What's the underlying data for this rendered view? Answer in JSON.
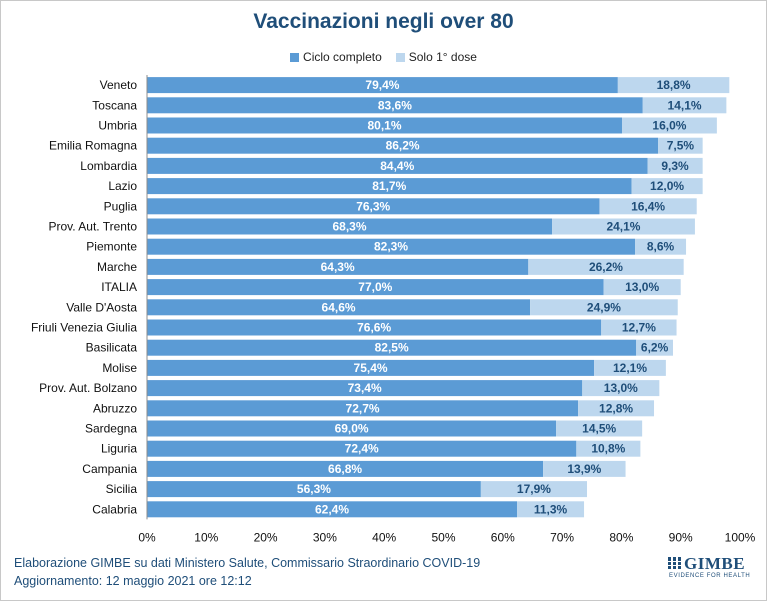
{
  "chart_data": {
    "type": "bar",
    "orientation": "horizontal",
    "stacked": true,
    "title": "Vaccinazioni negli over 80",
    "categories": [
      "Veneto",
      "Toscana",
      "Umbria",
      "Emilia Romagna",
      "Lombardia",
      "Lazio",
      "Puglia",
      "Prov. Aut. Trento",
      "Piemonte",
      "Marche",
      "ITALIA",
      "Valle D'Aosta",
      "Friuli Venezia Giulia",
      "Basilicata",
      "Molise",
      "Prov. Aut. Bolzano",
      "Abruzzo",
      "Sardegna",
      "Liguria",
      "Campania",
      "Sicilia",
      "Calabria"
    ],
    "series": [
      {
        "name": "Ciclo completo",
        "color": "#5b9bd5",
        "values": [
          79.4,
          83.6,
          80.1,
          86.2,
          84.4,
          81.7,
          76.3,
          68.3,
          82.3,
          64.3,
          77.0,
          64.6,
          76.6,
          82.5,
          75.4,
          73.4,
          72.7,
          69.0,
          72.4,
          66.8,
          56.3,
          62.4
        ],
        "labels": [
          "79,4%",
          "83,6%",
          "80,1%",
          "86,2%",
          "84,4%",
          "81,7%",
          "76,3%",
          "68,3%",
          "82,3%",
          "64,3%",
          "77,0%",
          "64,6%",
          "76,6%",
          "82,5%",
          "75,4%",
          "73,4%",
          "72,7%",
          "69,0%",
          "72,4%",
          "66,8%",
          "56,3%",
          "62,4%"
        ]
      },
      {
        "name": "Solo 1° dose",
        "color": "#bdd7ee",
        "values": [
          18.8,
          14.1,
          16.0,
          7.5,
          9.3,
          12.0,
          16.4,
          24.1,
          8.6,
          26.2,
          13.0,
          24.9,
          12.7,
          6.2,
          12.1,
          13.0,
          12.8,
          14.5,
          10.8,
          13.9,
          17.9,
          11.3
        ],
        "labels": [
          "18,8%",
          "14,1%",
          "16,0%",
          "7,5%",
          "9,3%",
          "12,0%",
          "16,4%",
          "24,1%",
          "8,6%",
          "26,2%",
          "13,0%",
          "24,9%",
          "12,7%",
          "6,2%",
          "12,1%",
          "13,0%",
          "12,8%",
          "14,5%",
          "10,8%",
          "13,9%",
          "17,9%",
          "11,3%"
        ]
      }
    ],
    "x_ticks": [
      "0%",
      "10%",
      "20%",
      "30%",
      "40%",
      "50%",
      "60%",
      "70%",
      "80%",
      "90%",
      "100%"
    ],
    "xlim": [
      0,
      100
    ],
    "grid": false,
    "legend_position": "top"
  },
  "footer": {
    "source": "Elaborazione GIMBE su dati Ministero Salute, Commissario Straordinario COVID-19",
    "updated": "Aggiornamento: 12 maggio 2021 ore 12:12"
  },
  "logo": {
    "name": "GIMBE",
    "tagline": "EVIDENCE FOR HEALTH"
  },
  "colors": {
    "title": "#1f4e79",
    "label_light": "#ffffff",
    "label_dark": "#1f4e79"
  }
}
